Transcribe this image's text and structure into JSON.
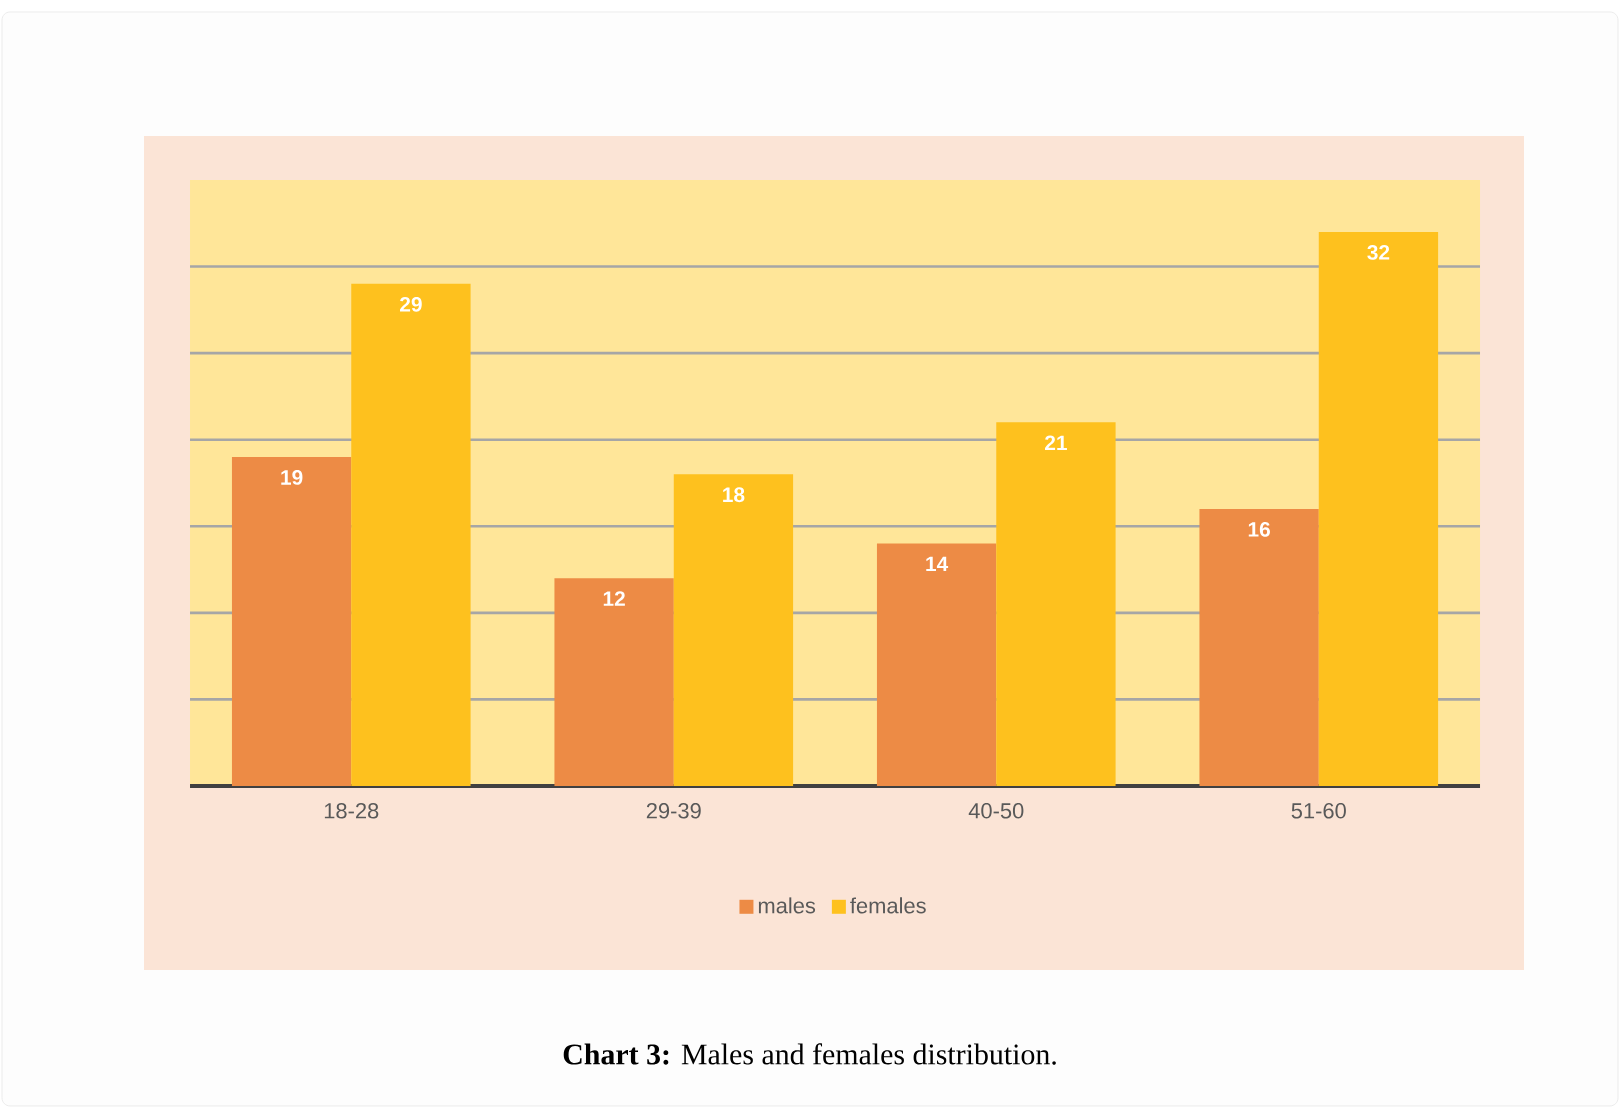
{
  "chart_data": {
    "type": "bar",
    "categories": [
      "18-28",
      "29-39",
      "40-50",
      "51-60"
    ],
    "series": [
      {
        "name": "males",
        "color": "#ed8b45",
        "values": [
          19,
          12,
          14,
          16
        ]
      },
      {
        "name": "females",
        "color": "#fec11e",
        "values": [
          29,
          18,
          21,
          32
        ]
      }
    ],
    "ylim": [
      0,
      35
    ],
    "yticks": [
      {
        "value": 0,
        "label": null
      },
      {
        "value": 5,
        "label": null
      },
      {
        "value": 10,
        "label": null
      },
      {
        "value": 15,
        "label": null
      },
      {
        "value": 20,
        "label": null
      },
      {
        "value": 25,
        "label": null
      },
      {
        "value": 30,
        "label": null
      }
    ],
    "tick_labels": "x",
    "grid": "y",
    "legend": "bottom",
    "data_labels": true,
    "annotations": [
      "**Chart 3:** Males and females distribution."
    ]
  }
}
